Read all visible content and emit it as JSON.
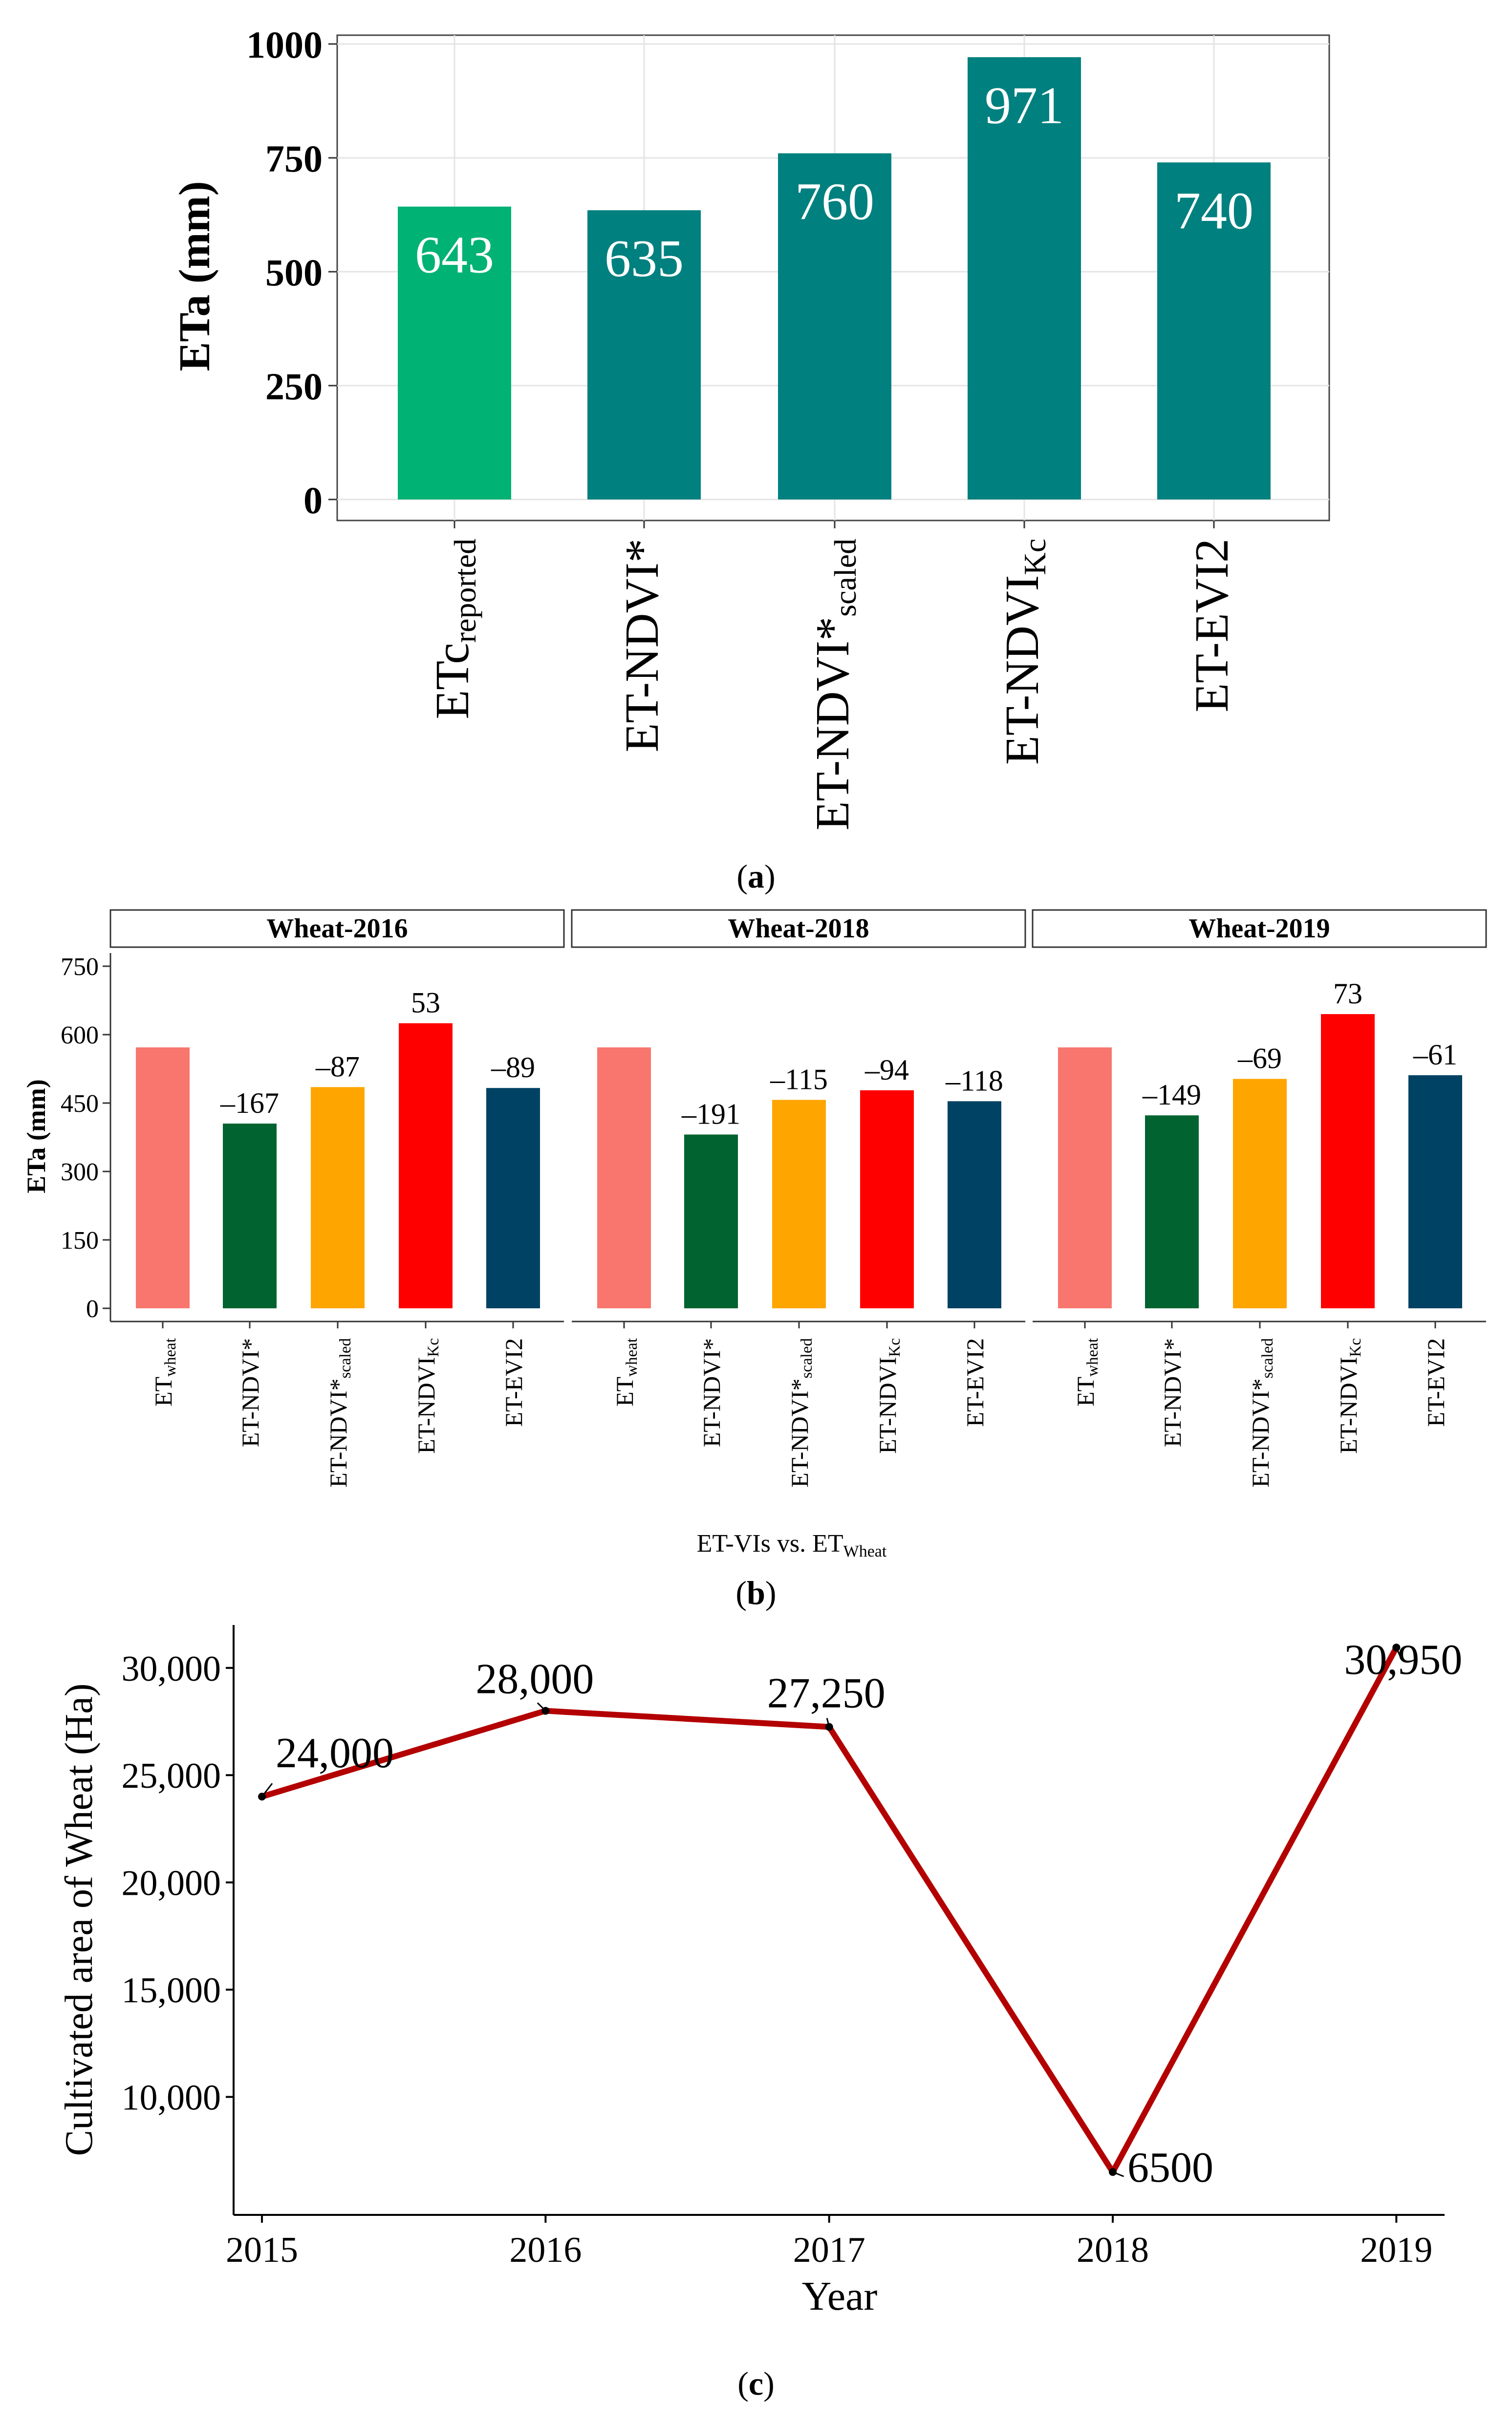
{
  "chart_data": [
    {
      "panel_label": "a",
      "type": "bar",
      "categories": [
        {
          "main": "ETc",
          "sub": "reported"
        },
        {
          "main": "ET-NDVI*",
          "sub": ""
        },
        {
          "main": "ET-NDVI*",
          "sub": "scaled"
        },
        {
          "main": "ET-NDVI",
          "sub": "Kc"
        },
        {
          "main": "ET-EVI2",
          "sub": ""
        }
      ],
      "values": [
        643,
        635,
        760,
        971,
        740
      ],
      "data_labels": [
        "643",
        "635",
        "760",
        "971",
        "740"
      ],
      "colors": [
        "#00b274",
        "#00807f",
        "#00807f",
        "#00807f",
        "#00807f"
      ],
      "ylabel": "ETa (mm)",
      "ylim": [
        0,
        1000
      ],
      "yticks": [
        "0",
        "250",
        "500",
        "750",
        "1000"
      ],
      "grid": true
    },
    {
      "panel_label": "b",
      "type": "bar",
      "xlabel": {
        "main": "ET-VIs vs. ET",
        "sub": "Wheat"
      },
      "ylabel": "ETa (mm)",
      "ylim": [
        0,
        750
      ],
      "yticks": [
        "0",
        "150",
        "300",
        "450",
        "600",
        "750"
      ],
      "categories": [
        {
          "main": "ET",
          "sub": "wheat"
        },
        {
          "main": "ET-NDVI*",
          "sub": ""
        },
        {
          "main": "ET-NDVI*",
          "sub": "scaled"
        },
        {
          "main": "ET-NDVI",
          "sub": "Kc"
        },
        {
          "main": "ET-EVI2",
          "sub": ""
        }
      ],
      "colors": [
        "#f8766d",
        "#006330",
        "#ffa500",
        "#ff0000",
        "#004263"
      ],
      "facets": [
        {
          "title": "Wheat-2016",
          "values": [
            572,
            405,
            485,
            625,
            483
          ],
          "data_labels": [
            "",
            "–167",
            "–87",
            "53",
            "–89"
          ]
        },
        {
          "title": "Wheat-2018",
          "values": [
            572,
            381,
            457,
            478,
            454
          ],
          "data_labels": [
            "",
            "–191",
            "–115",
            "–94",
            "–118"
          ]
        },
        {
          "title": "Wheat-2019",
          "values": [
            572,
            423,
            503,
            645,
            511
          ],
          "data_labels": [
            "",
            "–149",
            "–69",
            "73",
            "–61"
          ]
        }
      ]
    },
    {
      "panel_label": "c",
      "type": "line",
      "x": [
        2015,
        2016,
        2017,
        2018,
        2019
      ],
      "values": [
        24000,
        28000,
        27250,
        6500,
        30950
      ],
      "data_labels": [
        "24,000",
        "28,000",
        "27,250",
        "6500",
        "30,950"
      ],
      "xlabel": "Year",
      "ylabel": "Cultivated area of Wheat (Ha)",
      "xticks": [
        "2015",
        "2016",
        "2017",
        "2018",
        "2019"
      ],
      "yticks": [
        "10,000",
        "15,000",
        "20,000",
        "25,000",
        "30,000"
      ],
      "ytick_values": [
        10000,
        15000,
        20000,
        25000,
        30000
      ],
      "xlim": [
        2014.9,
        2019.17
      ],
      "ylim": [
        4500,
        32000
      ],
      "line_color": "#b30000"
    }
  ]
}
